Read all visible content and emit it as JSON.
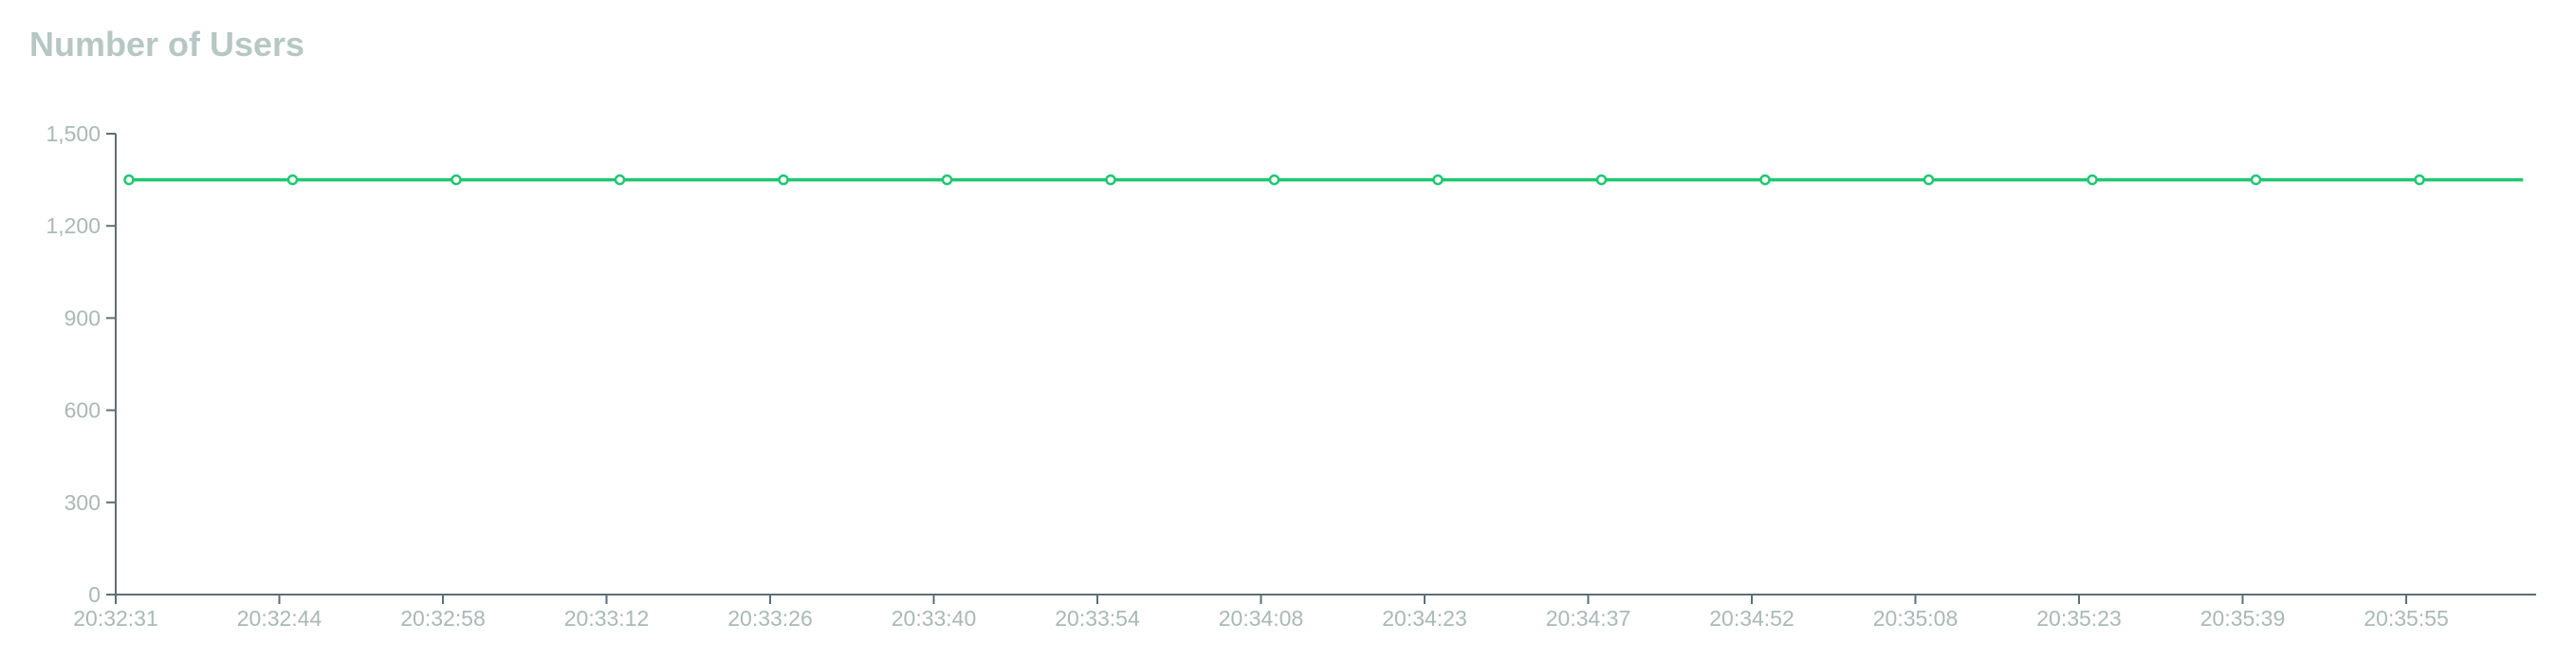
{
  "chart_data": {
    "type": "line",
    "title": "Number of Users",
    "xlabel": "",
    "ylabel": "",
    "x": [
      "20:32:31",
      "20:32:44",
      "20:32:58",
      "20:33:12",
      "20:33:26",
      "20:33:40",
      "20:33:54",
      "20:34:08",
      "20:34:23",
      "20:34:37",
      "20:34:52",
      "20:35:08",
      "20:35:23",
      "20:35:39",
      "20:35:55"
    ],
    "x_tick_labels": [
      "20:32:31",
      "20:32:44",
      "20:32:58",
      "20:33:12",
      "20:33:26",
      "20:33:40",
      "20:33:54",
      "20:34:08",
      "20:34:23",
      "20:34:37",
      "20:34:52",
      "20:35:08",
      "20:35:23",
      "20:35:39",
      "20:35:55"
    ],
    "y_ticks": [
      0,
      300,
      600,
      900,
      1200,
      1500
    ],
    "y_tick_labels": [
      "0",
      "300",
      "600",
      "900",
      "1,200",
      "1,500"
    ],
    "ylim": [
      0,
      1500
    ],
    "series": [
      {
        "values": [
          1350,
          1350,
          1350,
          1350,
          1350,
          1350,
          1350,
          1350,
          1350,
          1350,
          1350,
          1350,
          1350,
          1350,
          1350
        ],
        "color": "#1ec870"
      }
    ],
    "grid": false,
    "axis_color": "#5f6f73",
    "label_color": "#aab9b6",
    "title_color": "#b7c7c3"
  }
}
